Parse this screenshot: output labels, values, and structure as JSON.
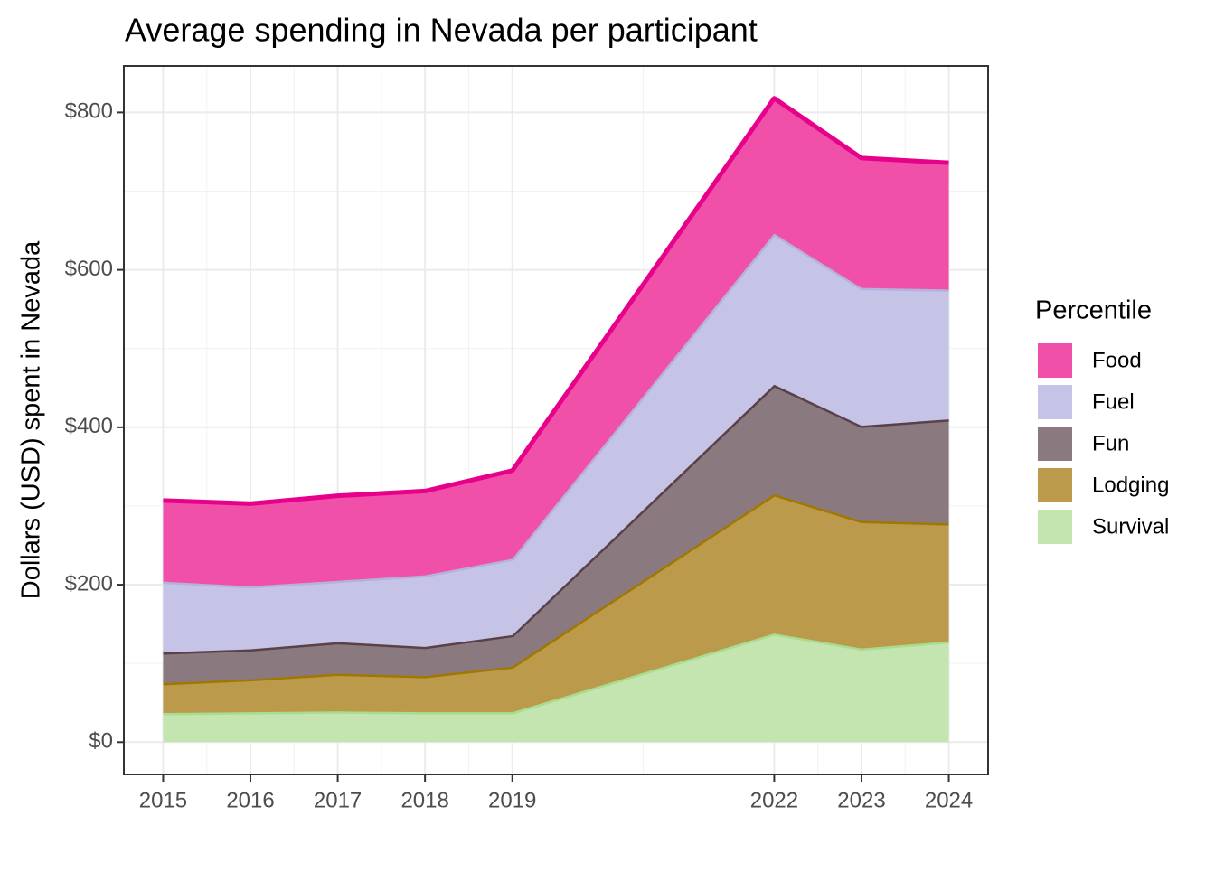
{
  "chart_data": {
    "type": "stacked_area",
    "title": "Average spending in Nevada per participant",
    "y_label": "Dollars (USD) spent in Nevada",
    "legend_title": "Percentile",
    "legend_position": "right",
    "grid": true,
    "x": [
      2015,
      2016,
      2017,
      2018,
      2019,
      2022,
      2023,
      2024
    ],
    "xlim": [
      2014.55,
      2024.45
    ],
    "xticks": [
      2015,
      2016,
      2017,
      2018,
      2019,
      2022,
      2023,
      2024
    ],
    "ylim": [
      -41,
      859
    ],
    "yticks": [
      {
        "value": 0,
        "label": "$0"
      },
      {
        "value": 200,
        "label": "$200"
      },
      {
        "value": 400,
        "label": "$400"
      },
      {
        "value": 600,
        "label": "$600"
      },
      {
        "value": 800,
        "label": "$800"
      }
    ],
    "series": [
      {
        "name": "Food",
        "color": "#f050a8",
        "line_color": "#e7008a",
        "values": [
          103,
          105,
          108,
          107,
          112,
          172,
          165,
          161
        ]
      },
      {
        "name": "Fuel",
        "color": "#c6c4e6",
        "line_color": "#b4b1dc",
        "values": [
          90,
          80,
          78,
          91,
          97,
          192,
          175,
          165
        ]
      },
      {
        "name": "Fun",
        "color": "#8a7a80",
        "line_color": "#5a4048",
        "values": [
          39,
          38,
          40,
          37,
          40,
          139,
          121,
          132
        ]
      },
      {
        "name": "Lodging",
        "color": "#bc9a4c",
        "line_color": "#a07800",
        "values": [
          38,
          42,
          48,
          46,
          58,
          177,
          162,
          150
        ]
      },
      {
        "name": "Survival",
        "color": "#c4e4b0",
        "line_color": "#a8dd90",
        "values": [
          37,
          38,
          39,
          38,
          38,
          138,
          119,
          128
        ]
      }
    ]
  }
}
